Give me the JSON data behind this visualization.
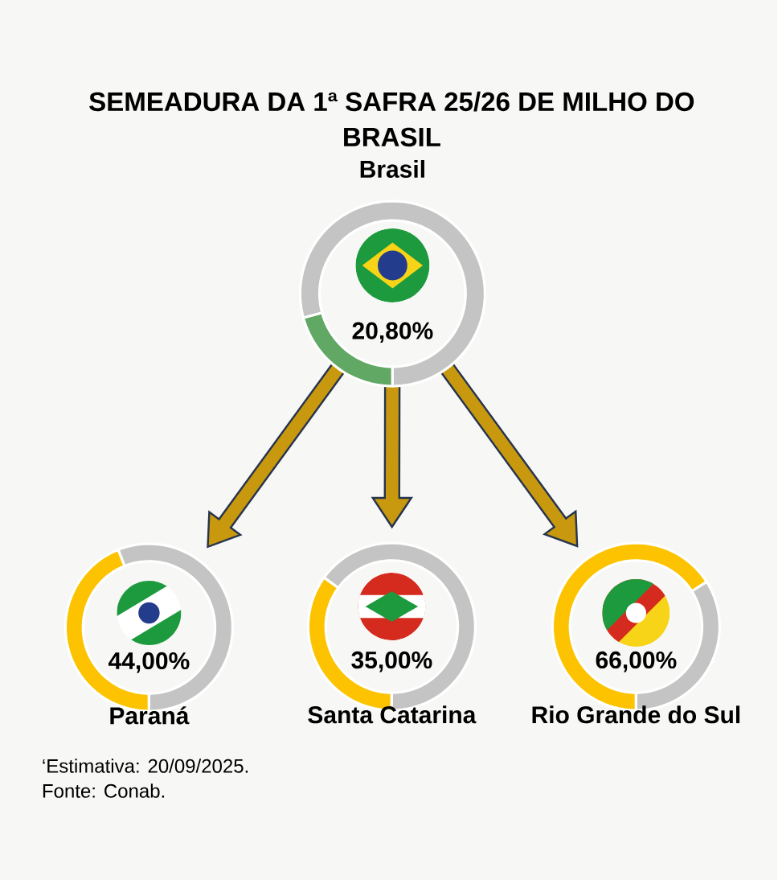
{
  "chart_data": [
    {
      "type": "other",
      "title": "SEMEADURA DA 1ª SAFRA 25/26 DE MILHO DO BRASIL",
      "annotations": [
        "‘Estimativa: 20/09/2025.",
        "Fonte: Conab."
      ]
    },
    {
      "type": "donut",
      "title": "Brasil",
      "categories": [
        null,
        null
      ],
      "values": [
        20.8,
        79.2
      ],
      "colors": [
        "#62a865",
        "#c4c4c4"
      ],
      "value_labels": [
        "20,80%",
        null
      ]
    },
    {
      "type": "donut",
      "title": "Paraná",
      "categories": [
        null,
        null
      ],
      "values": [
        44,
        56
      ],
      "colors": [
        "#fdc300",
        "#c4c4c4"
      ],
      "value_labels": [
        "44,00%",
        null
      ]
    },
    {
      "type": "donut",
      "title": "Santa Catarina",
      "categories": [
        null,
        null
      ],
      "values": [
        35,
        65
      ],
      "colors": [
        "#fdc300",
        "#c4c4c4"
      ],
      "value_labels": [
        "35,00%",
        null
      ]
    },
    {
      "type": "donut",
      "title": "Rio Grande do Sul",
      "categories": [
        null,
        null
      ],
      "values": [
        66,
        34
      ],
      "colors": [
        "#fdc300",
        "#c4c4c4"
      ],
      "value_labels": [
        "66,00%",
        null
      ]
    }
  ]
}
